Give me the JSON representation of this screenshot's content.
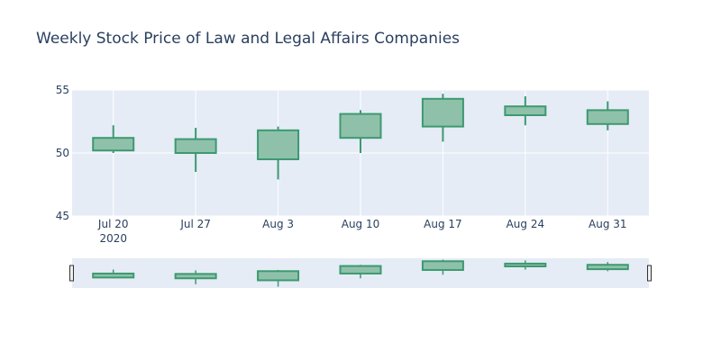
{
  "chart_data": {
    "type": "candlestick",
    "title": "Weekly Stock Price of Law and Legal Affairs Companies",
    "x_tick_labels": [
      "Jul 20",
      "Jul 27",
      "Aug 3",
      "Aug 10",
      "Aug 17",
      "Aug 24",
      "Aug 31"
    ],
    "x_tick_sublabels": [
      "2020",
      "",
      "",
      "",
      "",
      "",
      ""
    ],
    "y_ticks": [
      45,
      50,
      55
    ],
    "ylim": [
      45,
      55
    ],
    "rangeslider": true,
    "grid": true,
    "candles": [
      {
        "x": "2020-07-20",
        "open": 50.2,
        "high": 52.2,
        "low": 50.0,
        "close": 51.2
      },
      {
        "x": "2020-07-27",
        "open": 51.1,
        "high": 52.0,
        "low": 48.5,
        "close": 50.0
      },
      {
        "x": "2020-08-03",
        "open": 49.5,
        "high": 52.1,
        "low": 47.9,
        "close": 51.8
      },
      {
        "x": "2020-08-10",
        "open": 51.2,
        "high": 53.4,
        "low": 50.0,
        "close": 53.1
      },
      {
        "x": "2020-08-17",
        "open": 52.1,
        "high": 54.7,
        "low": 50.9,
        "close": 54.3
      },
      {
        "x": "2020-08-24",
        "open": 53.0,
        "high": 54.5,
        "low": 52.2,
        "close": 53.7
      },
      {
        "x": "2020-08-31",
        "open": 52.3,
        "high": 54.1,
        "low": 51.8,
        "close": 53.4
      }
    ],
    "colors": {
      "increasing_line": "#3d9970",
      "increasing_fill": "#8fc1aa",
      "plot_bg": "#e5ecf6",
      "grid": "#ffffff",
      "text": "#2a3f5f"
    }
  }
}
